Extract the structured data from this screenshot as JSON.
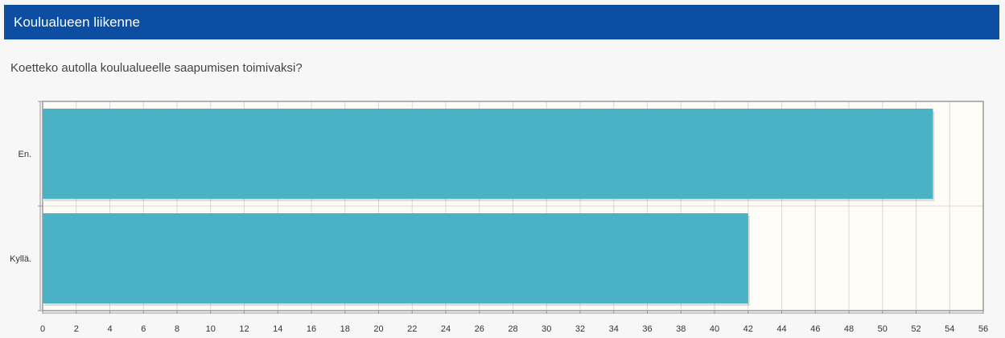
{
  "section": {
    "title": "Koulualueen liikenne"
  },
  "question": {
    "text": "Koetteko autolla koulualueelle saapumisen toimivaksi?"
  },
  "colors": {
    "header_bg": "#0c4ea2",
    "bar": "#4bb1c4",
    "plot_bg": "#fefcf6",
    "grid": "#d8d8d8"
  },
  "chart_data": {
    "type": "bar",
    "orientation": "horizontal",
    "categories": [
      "En.",
      "Kyllä."
    ],
    "values": [
      53,
      42
    ],
    "xlim": [
      0,
      56
    ],
    "xticks": [
      0,
      2,
      4,
      6,
      8,
      10,
      12,
      14,
      16,
      18,
      20,
      22,
      24,
      26,
      28,
      30,
      32,
      34,
      36,
      38,
      40,
      42,
      44,
      46,
      48,
      50,
      52,
      54,
      56
    ],
    "title": "",
    "xlabel": "",
    "ylabel": "",
    "grid": true,
    "legend": "none"
  }
}
